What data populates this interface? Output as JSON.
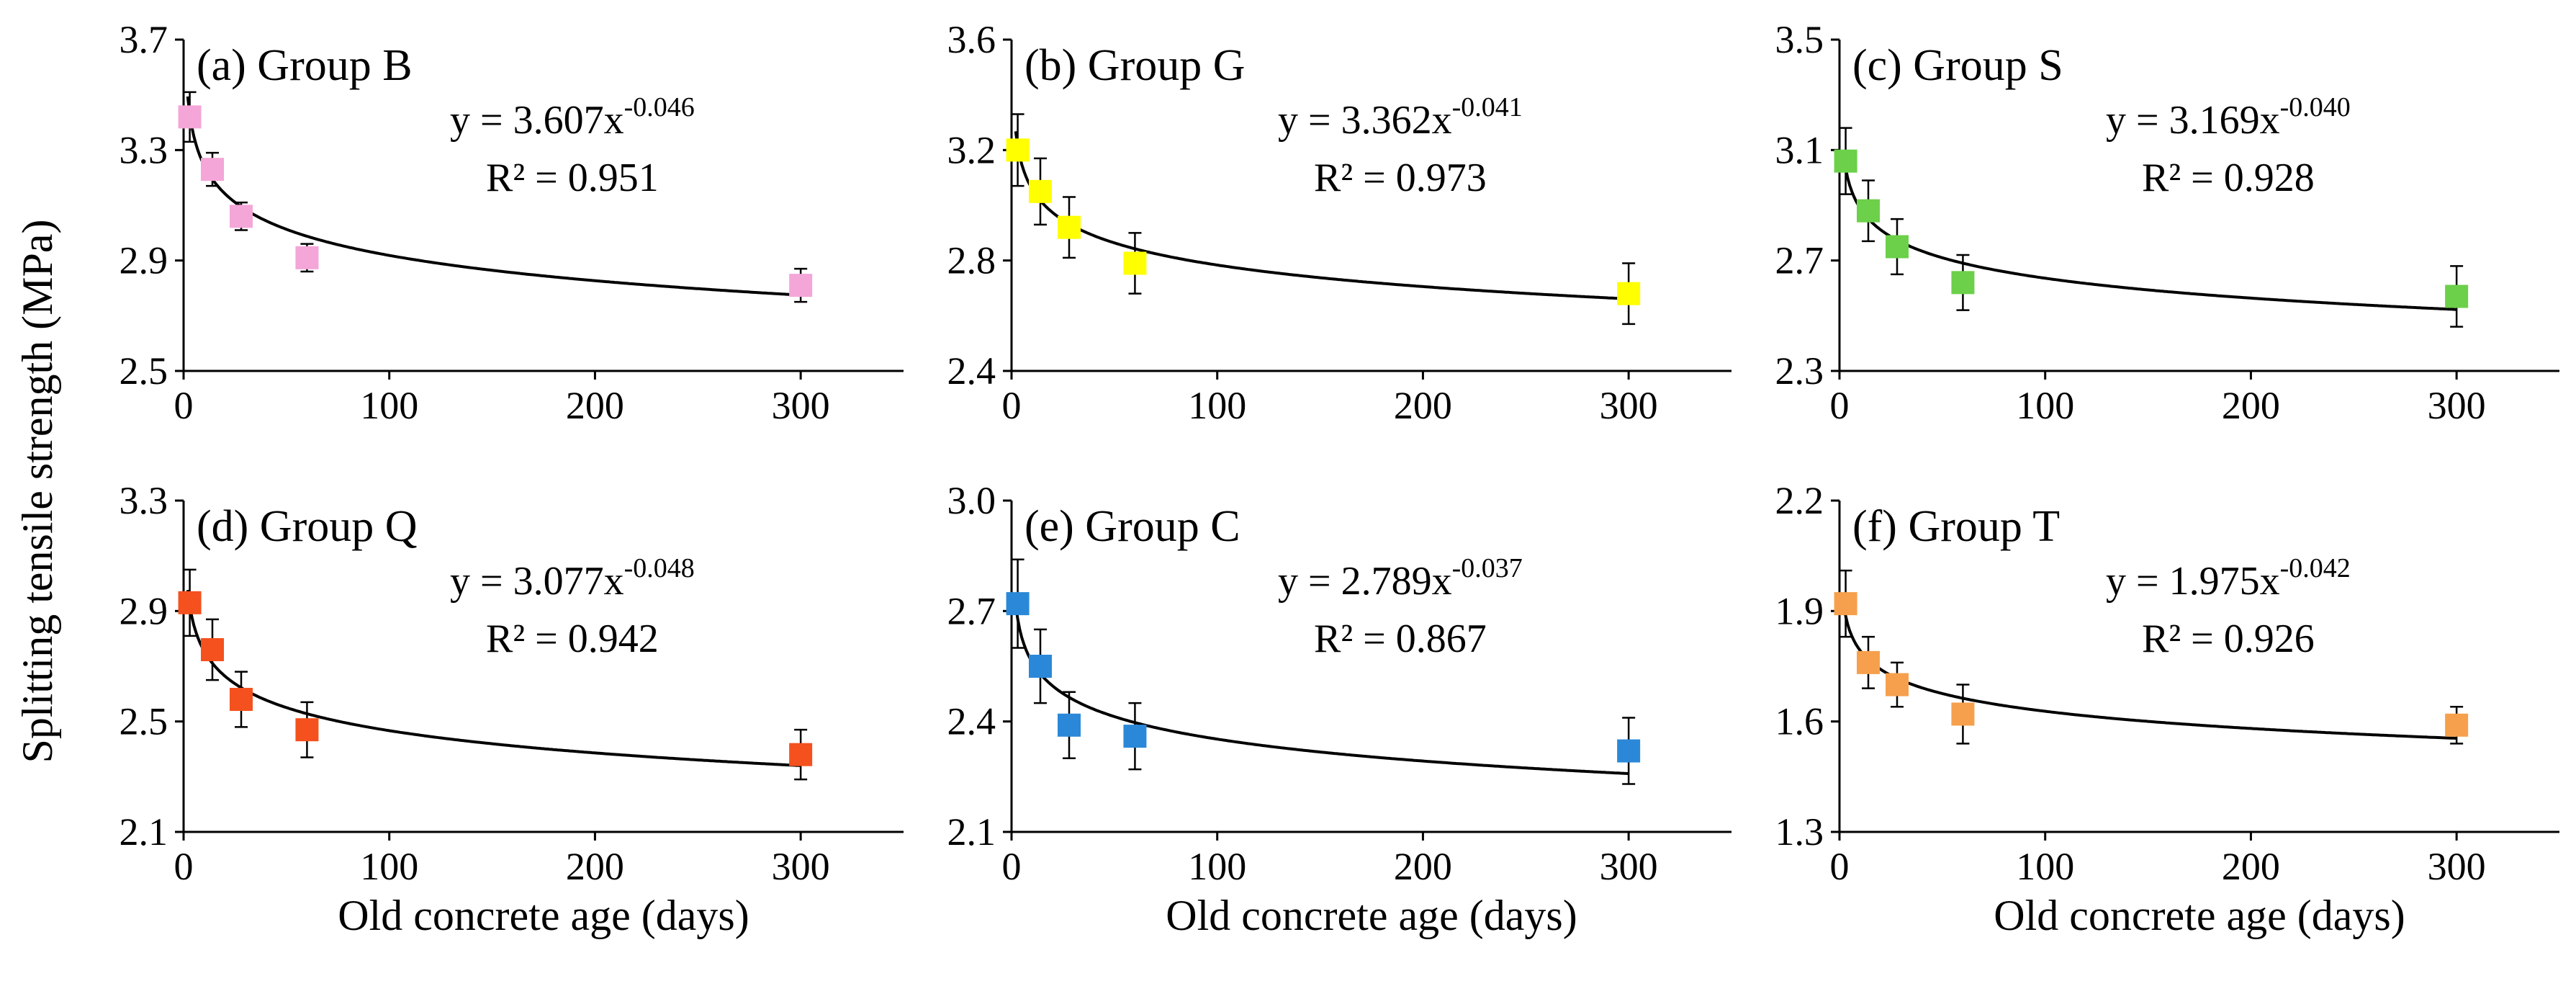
{
  "figure": {
    "ylabel": "Splitting tensile strength (MPa)",
    "xlabel": "Old concrete age (days)"
  },
  "chart_data": [
    {
      "type": "scatter",
      "title": "(a) Group B",
      "xlabel": "",
      "ylabel": "Splitting tensile strength (MPa)",
      "xlim": [
        0,
        350
      ],
      "xticks": [
        "0",
        "100",
        "200",
        "300"
      ],
      "ylim": [
        2.5,
        3.7
      ],
      "yticks": [
        "2.5",
        "2.9",
        "3.3",
        "3.7"
      ],
      "marker_color": "#f4a6d8",
      "x": [
        3,
        14,
        28,
        60,
        300
      ],
      "y": [
        3.42,
        3.23,
        3.06,
        2.91,
        2.81
      ],
      "error": [
        0.09,
        0.06,
        0.05,
        0.05,
        0.06
      ],
      "fit": {
        "coef": 3.607,
        "exp": -0.046,
        "eq_base": "y = 3.607x",
        "eq_exp": "-0.046",
        "r2_text": "R² = 0.951"
      }
    },
    {
      "type": "scatter",
      "title": "(b) Group G",
      "xlabel": "",
      "ylabel": "",
      "xlim": [
        0,
        350
      ],
      "xticks": [
        "0",
        "100",
        "200",
        "300"
      ],
      "ylim": [
        2.4,
        3.6
      ],
      "yticks": [
        "2.4",
        "2.8",
        "3.2",
        "3.6"
      ],
      "marker_color": "#ffff00",
      "x": [
        3,
        14,
        28,
        60,
        300
      ],
      "y": [
        3.2,
        3.05,
        2.92,
        2.79,
        2.68
      ],
      "error": [
        0.13,
        0.12,
        0.11,
        0.11,
        0.11
      ],
      "fit": {
        "coef": 3.362,
        "exp": -0.041,
        "eq_base": "y = 3.362x",
        "eq_exp": "-0.041",
        "r2_text": "R² = 0.973"
      }
    },
    {
      "type": "scatter",
      "title": "(c) Group S",
      "xlabel": "",
      "ylabel": "",
      "xlim": [
        0,
        350
      ],
      "xticks": [
        "0",
        "100",
        "200",
        "300"
      ],
      "ylim": [
        2.3,
        3.5
      ],
      "yticks": [
        "2.3",
        "2.7",
        "3.1",
        "3.5"
      ],
      "marker_color": "#6cd04a",
      "x": [
        3,
        14,
        28,
        60,
        300
      ],
      "y": [
        3.06,
        2.88,
        2.75,
        2.62,
        2.57
      ],
      "error": [
        0.12,
        0.11,
        0.1,
        0.1,
        0.11
      ],
      "fit": {
        "coef": 3.169,
        "exp": -0.04,
        "eq_base": "y = 3.169x",
        "eq_exp": "-0.040",
        "r2_text": "R² = 0.928"
      }
    },
    {
      "type": "scatter",
      "title": "(d) Group Q",
      "xlabel": "Old concrete age (days)",
      "ylabel": "Splitting tensile strength (MPa)",
      "xlim": [
        0,
        350
      ],
      "xticks": [
        "0",
        "100",
        "200",
        "300"
      ],
      "ylim": [
        2.1,
        3.3
      ],
      "yticks": [
        "2.1",
        "2.5",
        "2.9",
        "3.3"
      ],
      "marker_color": "#f4511e",
      "x": [
        3,
        14,
        28,
        60,
        300
      ],
      "y": [
        2.93,
        2.76,
        2.58,
        2.47,
        2.38
      ],
      "error": [
        0.12,
        0.11,
        0.1,
        0.1,
        0.09
      ],
      "fit": {
        "coef": 3.077,
        "exp": -0.048,
        "eq_base": "y = 3.077x",
        "eq_exp": "-0.048",
        "r2_text": "R² = 0.942"
      }
    },
    {
      "type": "scatter",
      "title": "(e) Group C",
      "xlabel": "Old concrete age (days)",
      "ylabel": "",
      "xlim": [
        0,
        350
      ],
      "xticks": [
        "0",
        "100",
        "200",
        "300"
      ],
      "ylim": [
        2.1,
        3.0
      ],
      "yticks": [
        "2.1",
        "2.4",
        "2.7",
        "3.0"
      ],
      "marker_color": "#2b88d8",
      "x": [
        3,
        14,
        28,
        60,
        300
      ],
      "y": [
        2.72,
        2.55,
        2.39,
        2.36,
        2.32
      ],
      "error": [
        0.12,
        0.1,
        0.09,
        0.09,
        0.09
      ],
      "fit": {
        "coef": 2.789,
        "exp": -0.037,
        "eq_base": "y = 2.789x",
        "eq_exp": "-0.037",
        "r2_text": "R² = 0.867"
      }
    },
    {
      "type": "scatter",
      "title": "(f) Group T",
      "xlabel": "Old concrete age (days)",
      "ylabel": "",
      "xlim": [
        0,
        350
      ],
      "xticks": [
        "0",
        "100",
        "200",
        "300"
      ],
      "ylim": [
        1.3,
        2.2
      ],
      "yticks": [
        "1.3",
        "1.6",
        "1.9",
        "2.2"
      ],
      "marker_color": "#f6a04d",
      "x": [
        3,
        14,
        28,
        60,
        300
      ],
      "y": [
        1.92,
        1.76,
        1.7,
        1.62,
        1.59
      ],
      "error": [
        0.09,
        0.07,
        0.06,
        0.08,
        0.05
      ],
      "fit": {
        "coef": 1.975,
        "exp": -0.042,
        "eq_base": "y = 1.975x",
        "eq_exp": "-0.042",
        "r2_text": "R² = 0.926"
      }
    }
  ]
}
